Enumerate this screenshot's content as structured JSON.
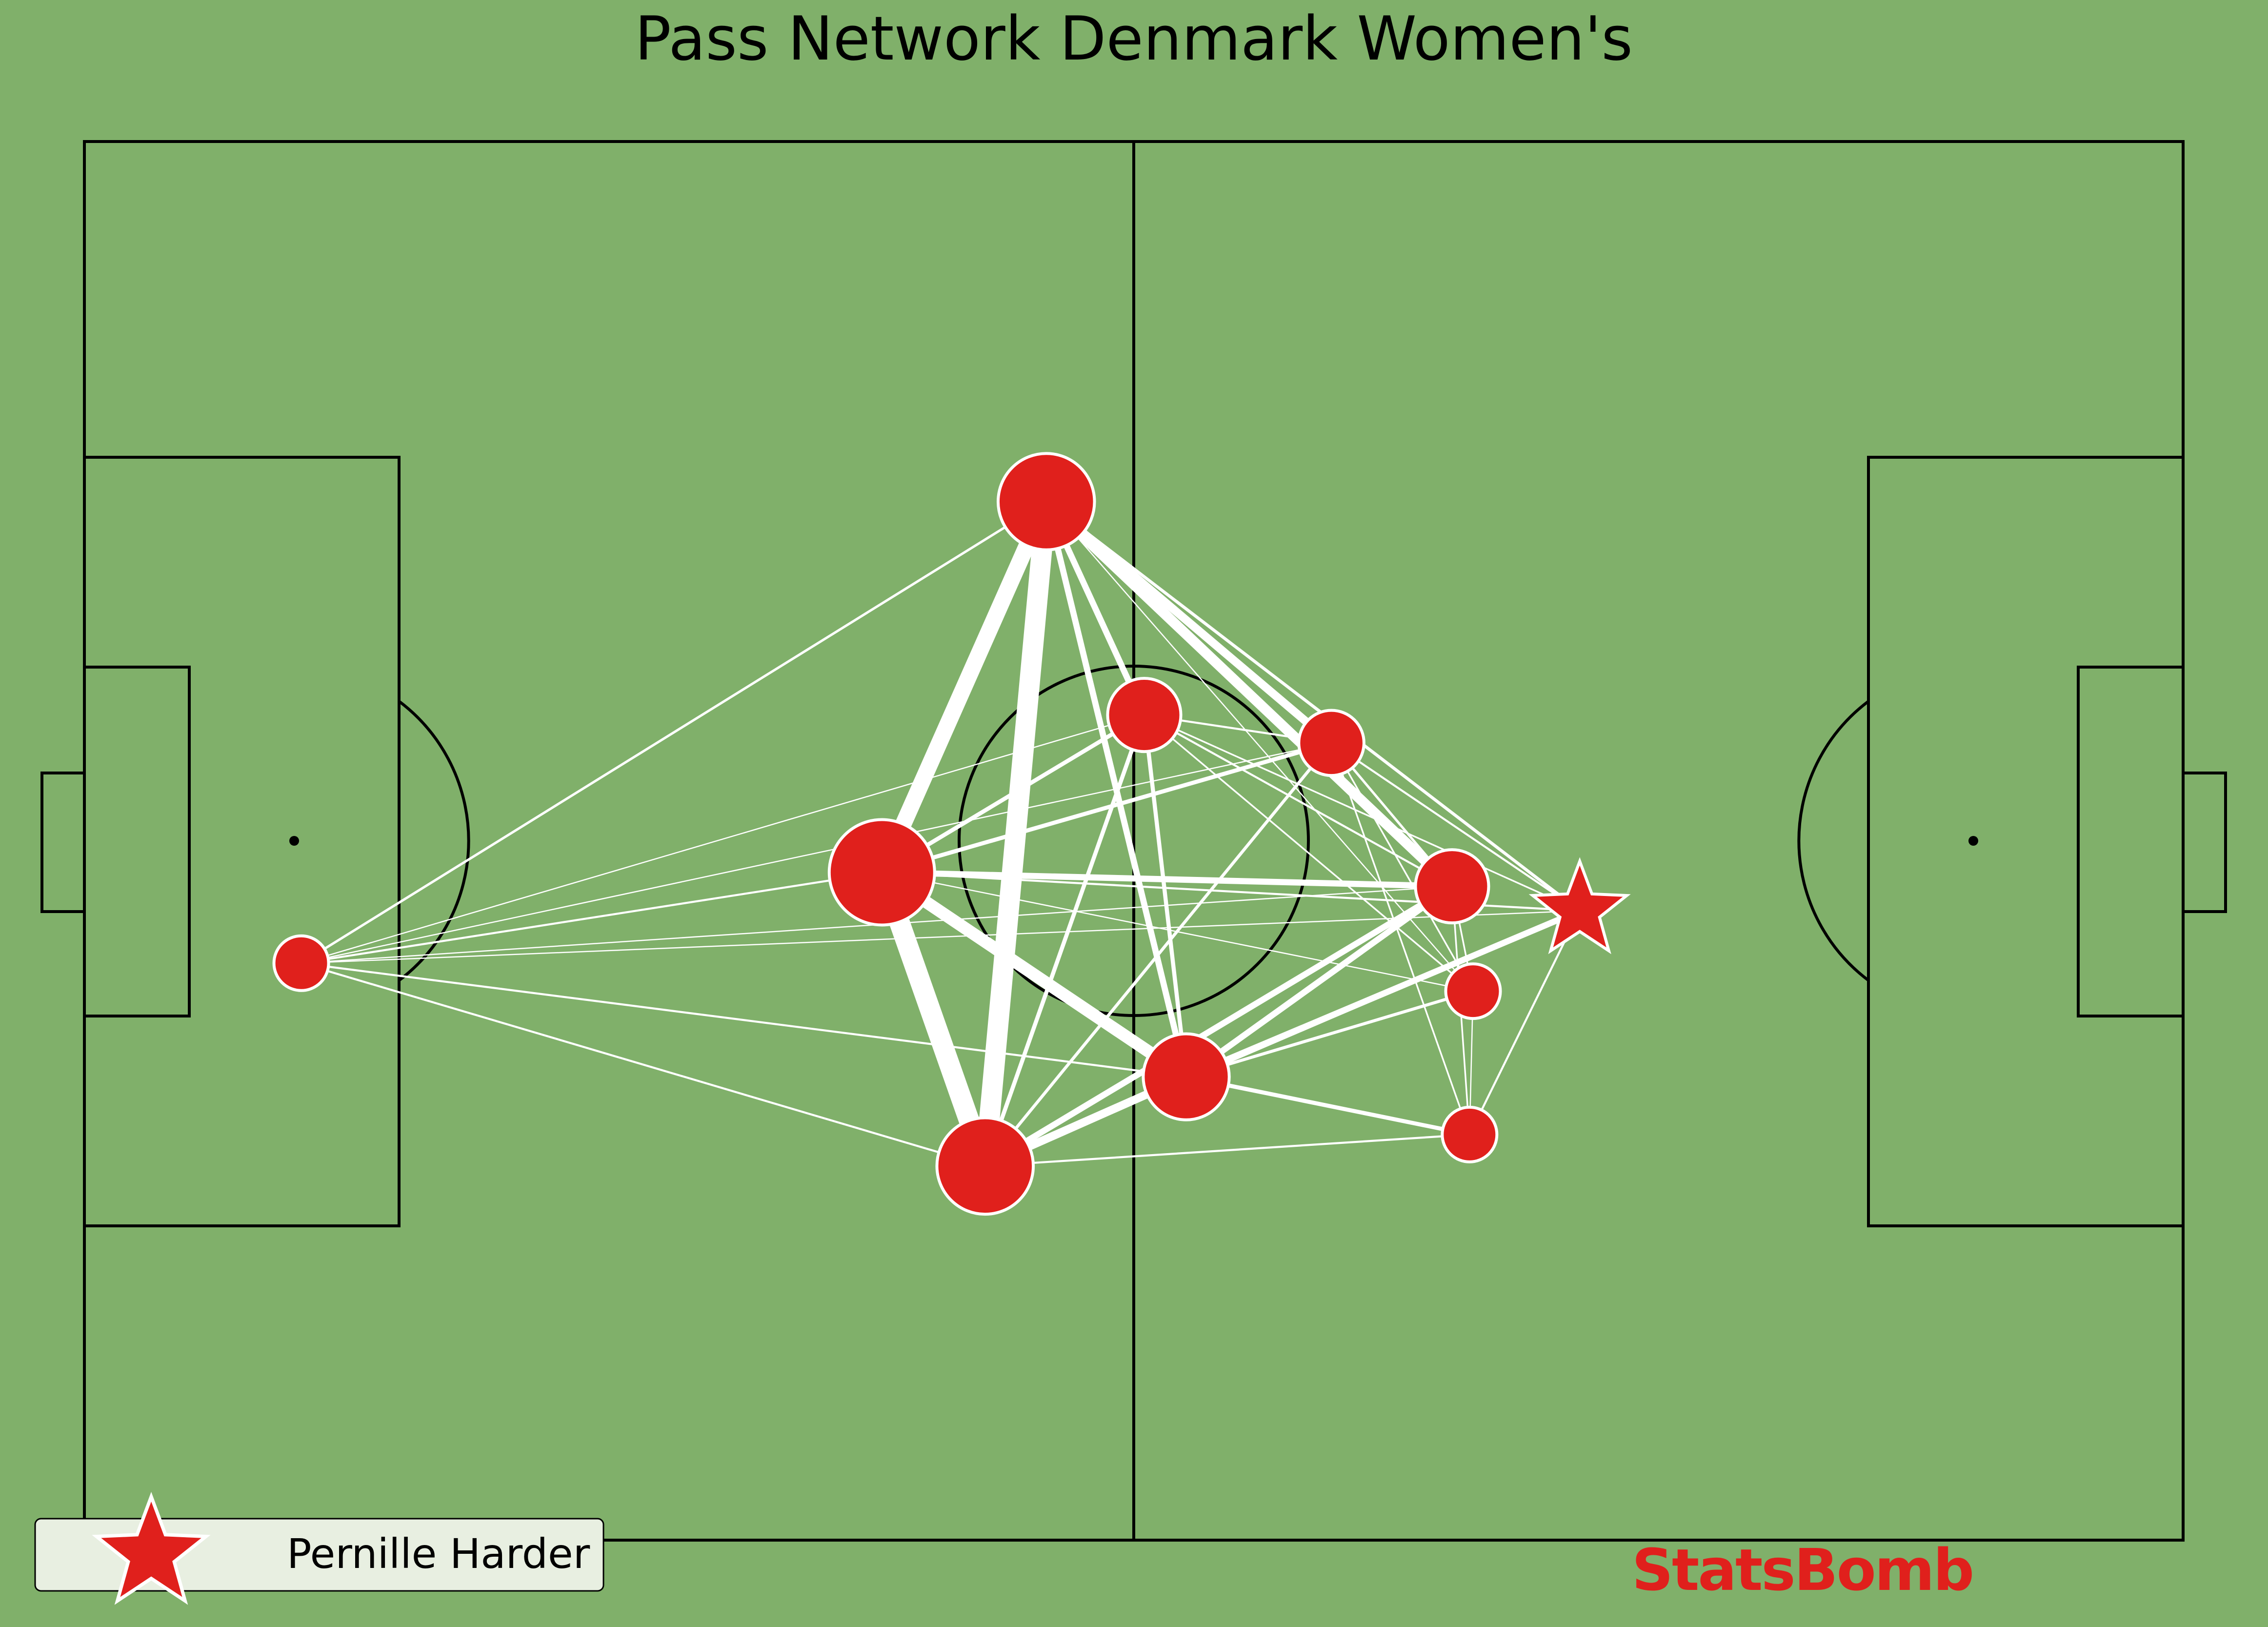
{
  "title": "Pass Network Denmark Women's",
  "legend": {
    "label": "Pernille Harder"
  },
  "brand": "StatsBomb",
  "colors": {
    "pitch": "#80b06a",
    "lines": "#000000",
    "node": "#e0201c",
    "edge": "#ffffff"
  },
  "chart_data": {
    "type": "network",
    "pitch": {
      "length": 120,
      "width": 80
    },
    "nodes": [
      {
        "id": "gk",
        "x": 12.4,
        "y": 47.0,
        "size": 1,
        "star": false
      },
      {
        "id": "p1",
        "x": 55.0,
        "y": 20.6,
        "size": 7,
        "star": false
      },
      {
        "id": "p2",
        "x": 60.6,
        "y": 32.8,
        "size": 3,
        "star": false
      },
      {
        "id": "p3",
        "x": 71.3,
        "y": 34.4,
        "size": 2,
        "star": false
      },
      {
        "id": "p4",
        "x": 45.6,
        "y": 41.8,
        "size": 9,
        "star": false
      },
      {
        "id": "p5",
        "x": 78.2,
        "y": 42.6,
        "size": 3,
        "star": false
      },
      {
        "id": "p6",
        "x": 85.5,
        "y": 44.0,
        "size": 5,
        "star": true
      },
      {
        "id": "p7",
        "x": 79.4,
        "y": 48.6,
        "size": 1,
        "star": false
      },
      {
        "id": "p8",
        "x": 63.0,
        "y": 53.5,
        "size": 5,
        "star": false
      },
      {
        "id": "p9",
        "x": 51.5,
        "y": 58.6,
        "size": 7,
        "star": false
      },
      {
        "id": "p10",
        "x": 79.2,
        "y": 56.8,
        "size": 1,
        "star": false
      }
    ],
    "edges": [
      {
        "a": "p1",
        "b": "p9",
        "w": 10
      },
      {
        "a": "p4",
        "b": "p9",
        "w": 10
      },
      {
        "a": "p1",
        "b": "p4",
        "w": 8
      },
      {
        "a": "p4",
        "b": "p8",
        "w": 6
      },
      {
        "a": "p1",
        "b": "p5",
        "w": 5
      },
      {
        "a": "p1",
        "b": "p3",
        "w": 4
      },
      {
        "a": "p1",
        "b": "p2",
        "w": 3
      },
      {
        "a": "p1",
        "b": "p8",
        "w": 3
      },
      {
        "a": "p4",
        "b": "p5",
        "w": 3
      },
      {
        "a": "p8",
        "b": "p9",
        "w": 4
      },
      {
        "a": "p8",
        "b": "p6",
        "w": 3
      },
      {
        "a": "p8",
        "b": "p5",
        "w": 3
      },
      {
        "a": "p9",
        "b": "p5",
        "w": 3
      },
      {
        "a": "p9",
        "b": "p2",
        "w": 2
      },
      {
        "a": "p8",
        "b": "p10",
        "w": 2
      },
      {
        "a": "p4",
        "b": "p2",
        "w": 2
      },
      {
        "a": "p4",
        "b": "p3",
        "w": 2
      },
      {
        "a": "p9",
        "b": "p1",
        "w": 2
      },
      {
        "a": "p1",
        "b": "p6",
        "w": 1.5
      },
      {
        "a": "p9",
        "b": "p3",
        "w": 1.5
      },
      {
        "a": "gk",
        "b": "p1",
        "w": 1.2
      },
      {
        "a": "gk",
        "b": "p4",
        "w": 1
      },
      {
        "a": "gk",
        "b": "p8",
        "w": 1
      },
      {
        "a": "gk",
        "b": "p9",
        "w": 1
      },
      {
        "a": "gk",
        "b": "p2",
        "w": 0.6
      },
      {
        "a": "gk",
        "b": "p5",
        "w": 0.6
      },
      {
        "a": "gk",
        "b": "p6",
        "w": 0.6
      },
      {
        "a": "gk",
        "b": "p3",
        "w": 0.6
      },
      {
        "a": "p9",
        "b": "p10",
        "w": 1
      },
      {
        "a": "p6",
        "b": "p10",
        "w": 1
      },
      {
        "a": "p6",
        "b": "p3",
        "w": 1
      },
      {
        "a": "p6",
        "b": "p2",
        "w": 0.8
      },
      {
        "a": "p2",
        "b": "p8",
        "w": 2
      },
      {
        "a": "p2",
        "b": "p5",
        "w": 1
      },
      {
        "a": "p2",
        "b": "p3",
        "w": 1
      },
      {
        "a": "p2",
        "b": "p7",
        "w": 0.8
      },
      {
        "a": "p3",
        "b": "p7",
        "w": 0.8
      },
      {
        "a": "p3",
        "b": "p10",
        "w": 0.8
      },
      {
        "a": "p3",
        "b": "p9",
        "w": 1
      },
      {
        "a": "p3",
        "b": "p5",
        "w": 1.2
      },
      {
        "a": "p5",
        "b": "p7",
        "w": 0.8
      },
      {
        "a": "p5",
        "b": "p10",
        "w": 0.8
      },
      {
        "a": "p7",
        "b": "p10",
        "w": 0.6
      },
      {
        "a": "p4",
        "b": "p6",
        "w": 1
      },
      {
        "a": "p4",
        "b": "p7",
        "w": 0.6
      },
      {
        "a": "p1",
        "b": "p7",
        "w": 0.6
      },
      {
        "a": "p8",
        "b": "p7",
        "w": 1.5
      },
      {
        "a": "p9",
        "b": "p6",
        "w": 1.5
      }
    ]
  }
}
